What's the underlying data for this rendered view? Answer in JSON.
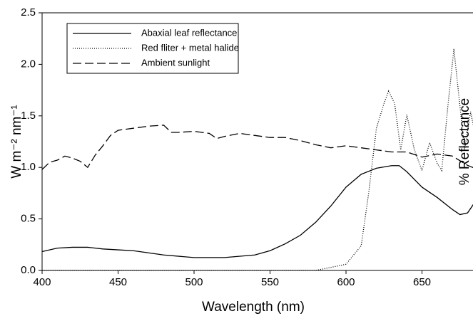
{
  "chart_data": {
    "type": "line",
    "xlabel": "Wavelength (nm)",
    "ylabel": "W m⁻² nm⁻¹",
    "y2label": "% Reflectance",
    "xlim": [
      400,
      700
    ],
    "xticks": [
      400,
      450,
      500,
      550,
      600,
      650,
      700
    ],
    "ylim": [
      0,
      2.5
    ],
    "yticks": [
      {
        "value": 0,
        "label": "0.0"
      },
      0.5,
      {
        "value": 1,
        "label": "1.0"
      },
      1.5,
      {
        "value": 2,
        "label": "2.0"
      },
      2.5
    ],
    "y2lim": [
      5,
      35
    ],
    "y2ticks": [
      5,
      10,
      15,
      20,
      25,
      30,
      35
    ],
    "legend": "upper left",
    "series": [
      {
        "name": "Abaxial leaf reflectance",
        "color": "#000000",
        "line_style": "solid",
        "axis": "y2",
        "x": [
          400,
          410,
          420,
          430,
          440,
          450,
          460,
          480,
          500,
          520,
          540,
          550,
          560,
          570,
          580,
          590,
          600,
          610,
          620,
          630,
          635,
          640,
          650,
          660,
          670,
          675,
          680,
          685,
          690,
          695,
          700
        ],
        "values": [
          7.2,
          7.6,
          7.7,
          7.7,
          7.5,
          7.4,
          7.3,
          6.8,
          6.5,
          6.5,
          6.8,
          7.3,
          8.1,
          9.1,
          10.6,
          12.5,
          14.7,
          16.2,
          16.9,
          17.2,
          17.2,
          16.5,
          14.7,
          13.5,
          12.1,
          11.5,
          11.7,
          13.0,
          15.1,
          17.5,
          19.9
        ]
      },
      {
        "name": "Red fliter + metal halide",
        "color": "#000000",
        "line_style": "dotted",
        "x": [
          400,
          580,
          590,
          600,
          610,
          615,
          620,
          625,
          628,
          632,
          636,
          640,
          645,
          650,
          655,
          660,
          663,
          667,
          671,
          675,
          678,
          682,
          686,
          690,
          695,
          700
        ],
        "values": [
          0,
          0,
          0.03,
          0.06,
          0.24,
          0.76,
          1.38,
          1.62,
          1.74,
          1.62,
          1.17,
          1.51,
          1.17,
          0.97,
          1.24,
          1.04,
          0.97,
          1.59,
          2.15,
          1.59,
          1.17,
          1.54,
          1.24,
          1.0,
          0.97,
          0.9
        ]
      },
      {
        "name": "Ambient sunlight",
        "color": "#000000",
        "line_style": "dashed",
        "x": [
          400,
          405,
          410,
          415,
          420,
          425,
          430,
          435,
          440,
          445,
          450,
          460,
          470,
          480,
          485,
          490,
          500,
          510,
          515,
          520,
          530,
          540,
          550,
          560,
          570,
          580,
          590,
          600,
          610,
          620,
          630,
          640,
          650,
          660,
          670,
          680,
          685,
          690,
          700
        ],
        "values": [
          0.98,
          1.05,
          1.07,
          1.11,
          1.09,
          1.06,
          1.0,
          1.12,
          1.21,
          1.31,
          1.36,
          1.38,
          1.4,
          1.41,
          1.34,
          1.34,
          1.35,
          1.33,
          1.28,
          1.3,
          1.33,
          1.31,
          1.29,
          1.29,
          1.26,
          1.22,
          1.19,
          1.21,
          1.19,
          1.17,
          1.15,
          1.15,
          1.1,
          1.13,
          1.11,
          1.02,
          0.99,
          0.99,
          0.98
        ]
      }
    ]
  }
}
